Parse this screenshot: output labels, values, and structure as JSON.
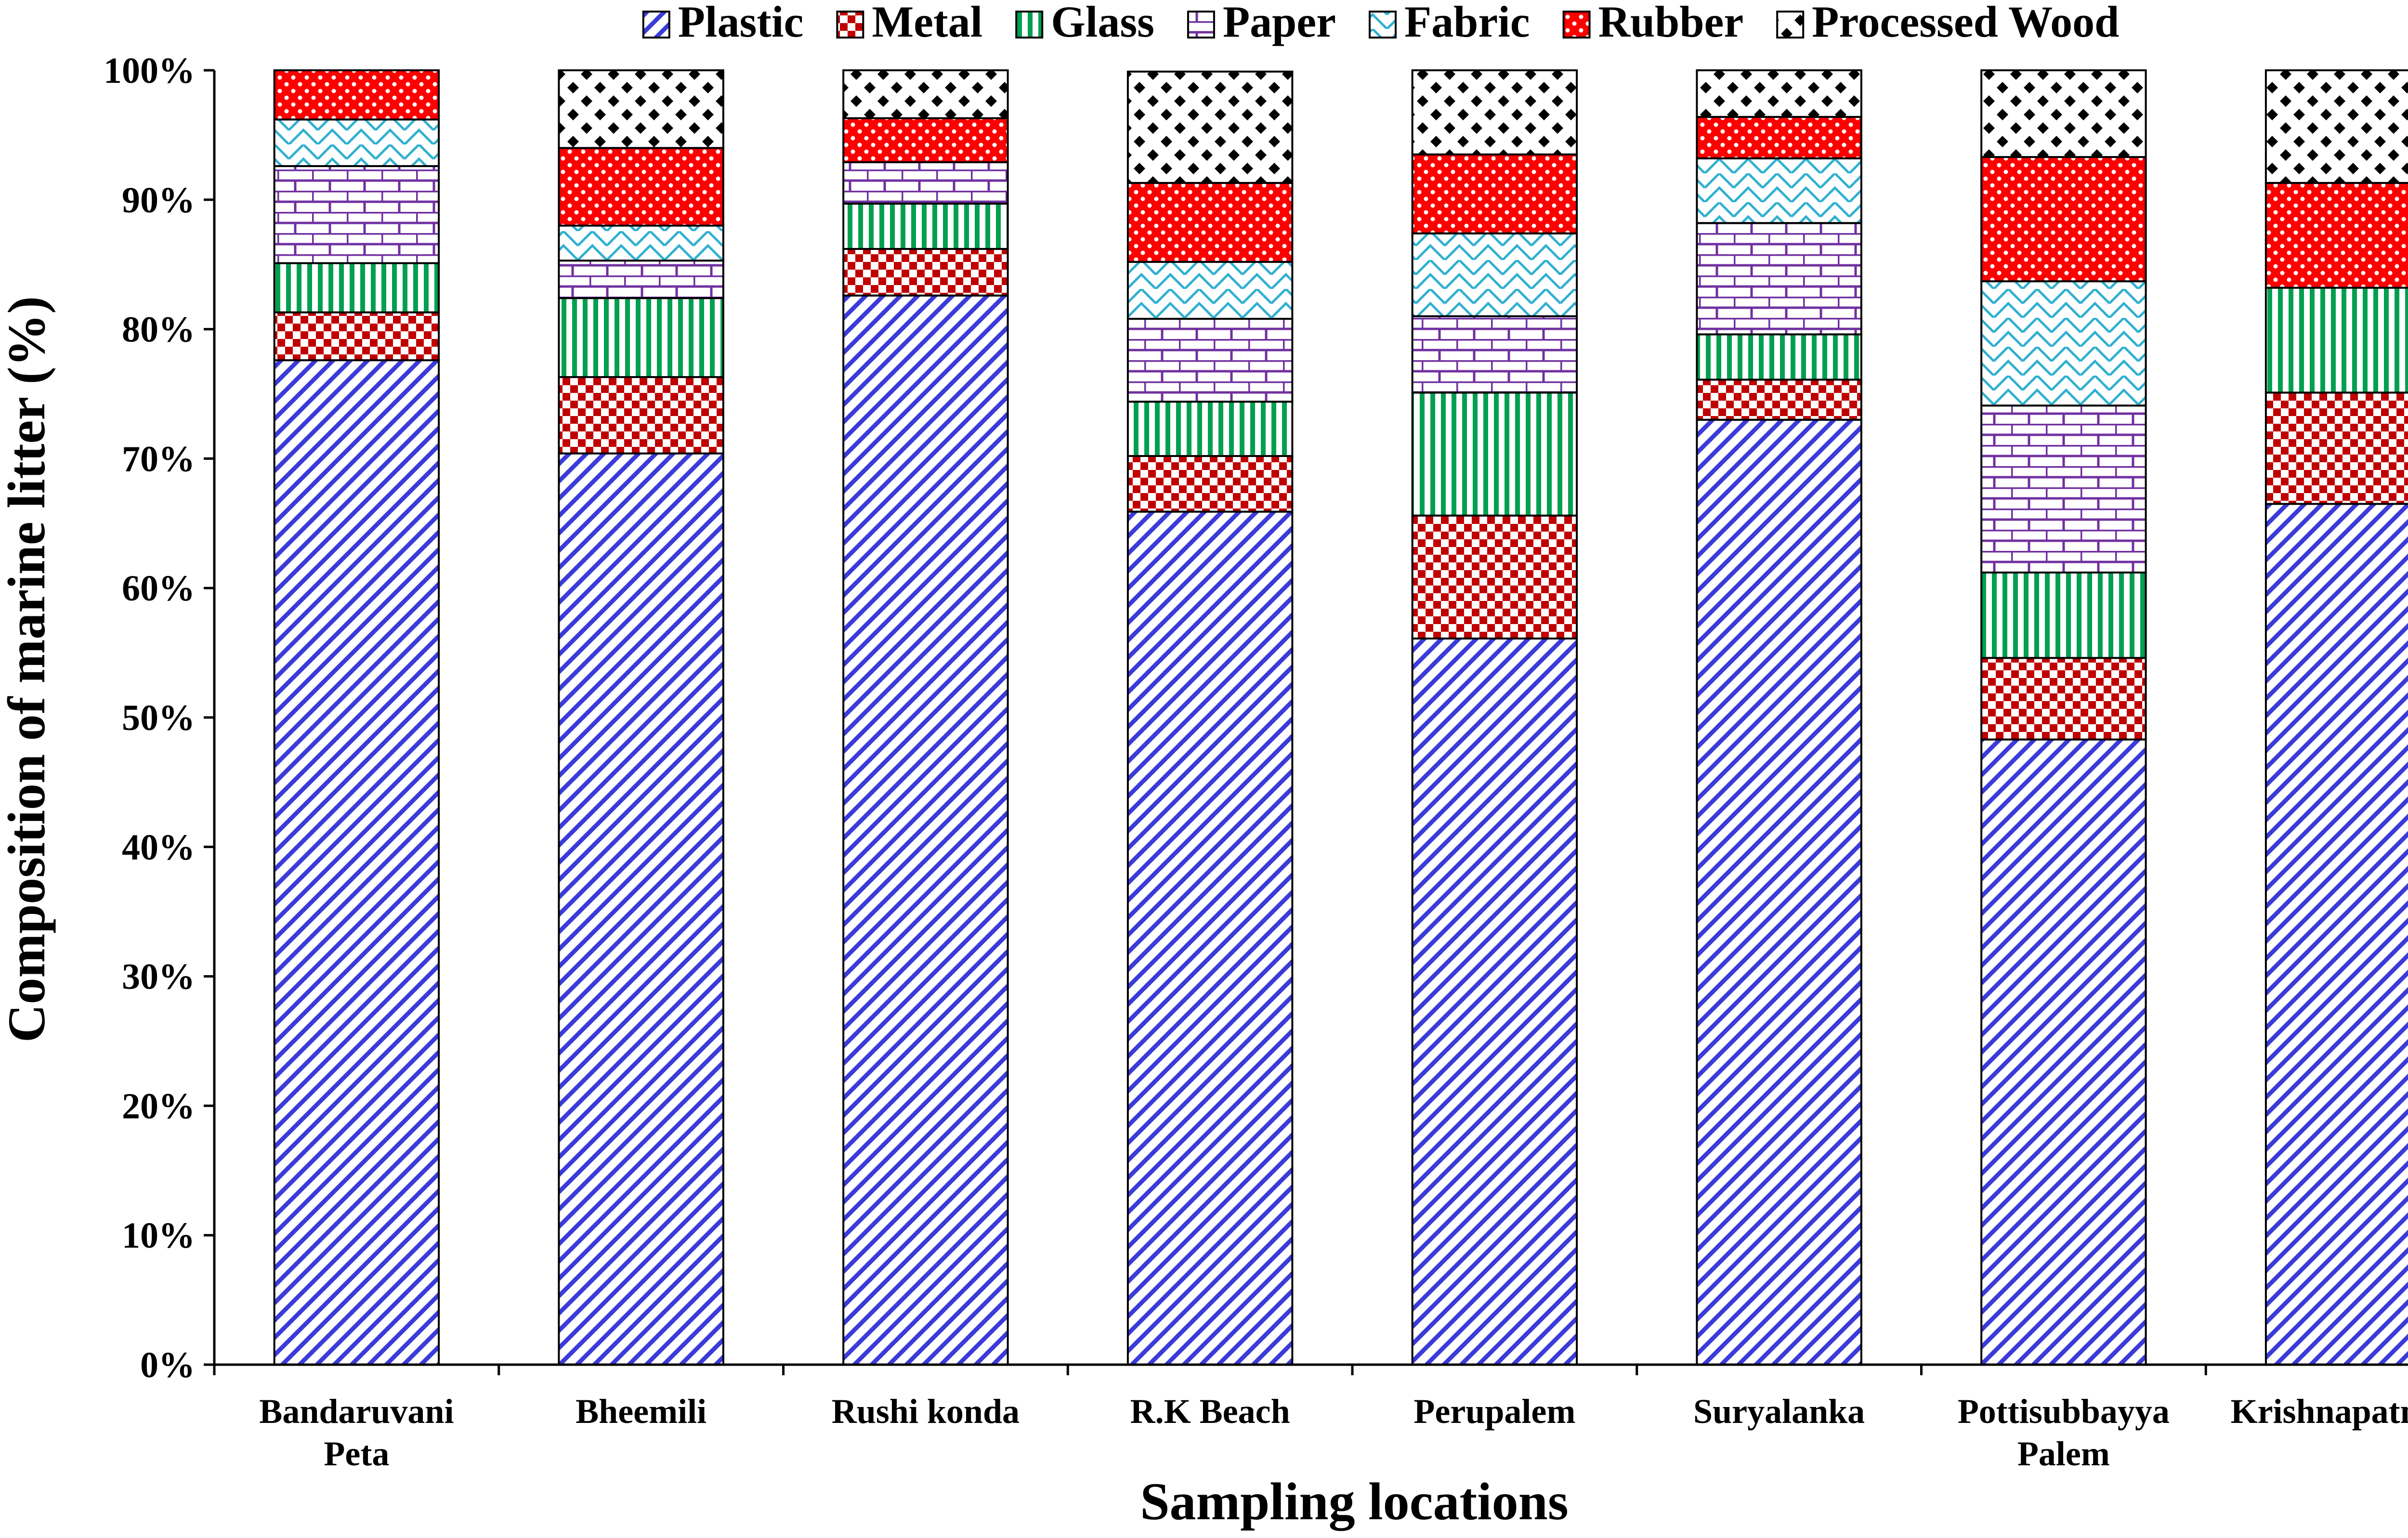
{
  "chart_data": {
    "type": "bar",
    "stacked": "percent",
    "xlabel": "Sampling locations",
    "ylabel": "Composition of marine litter (%)",
    "ylim": [
      0,
      100
    ],
    "yticks": [
      "0%",
      "10%",
      "20%",
      "30%",
      "40%",
      "50%",
      "60%",
      "70%",
      "80%",
      "90%",
      "100%"
    ],
    "grid": false,
    "legend_position": "top",
    "categories": [
      [
        "Bandaruvani",
        "Peta"
      ],
      [
        "Bheemili"
      ],
      [
        "Rushi konda"
      ],
      [
        "R.K Beach"
      ],
      [
        "Perupalem"
      ],
      [
        "Suryalanka"
      ],
      [
        "Pottisubbayya",
        "Palem"
      ],
      [
        "Krishnapatnam"
      ]
    ],
    "series": [
      {
        "name": "Plastic",
        "color": "#3b3bd9",
        "pattern": "diagonal",
        "values": [
          77.6,
          70.4,
          82.6,
          65.9,
          56.1,
          73.0,
          48.3,
          66.5
        ]
      },
      {
        "name": "Metal",
        "color": "#c00000",
        "pattern": "checker",
        "values": [
          3.7,
          5.9,
          3.6,
          4.3,
          9.5,
          3.1,
          6.3,
          8.6
        ]
      },
      {
        "name": "Glass",
        "color": "#00a050",
        "pattern": "vertical",
        "values": [
          3.8,
          6.1,
          3.5,
          4.2,
          9.5,
          3.5,
          6.6,
          8.1
        ]
      },
      {
        "name": "Paper",
        "color": "#7030a0",
        "pattern": "brick",
        "values": [
          7.5,
          2.9,
          3.2,
          6.4,
          5.9,
          8.6,
          12.9,
          0
        ]
      },
      {
        "name": "Fabric",
        "color": "#30b0d0",
        "pattern": "zigzag",
        "values": [
          3.6,
          2.7,
          0,
          4.4,
          6.4,
          5.0,
          9.6,
          0
        ]
      },
      {
        "name": "Rubber",
        "color": "#ff0000",
        "pattern": "dots",
        "values": [
          3.8,
          6.0,
          3.4,
          6.1,
          6.1,
          3.2,
          9.6,
          8.1
        ]
      },
      {
        "name": "Processed Wood",
        "color": "#000000",
        "pattern": "diamond",
        "values": [
          0,
          6.0,
          3.7,
          8.6,
          6.5,
          3.6,
          6.7,
          8.7
        ]
      }
    ]
  }
}
